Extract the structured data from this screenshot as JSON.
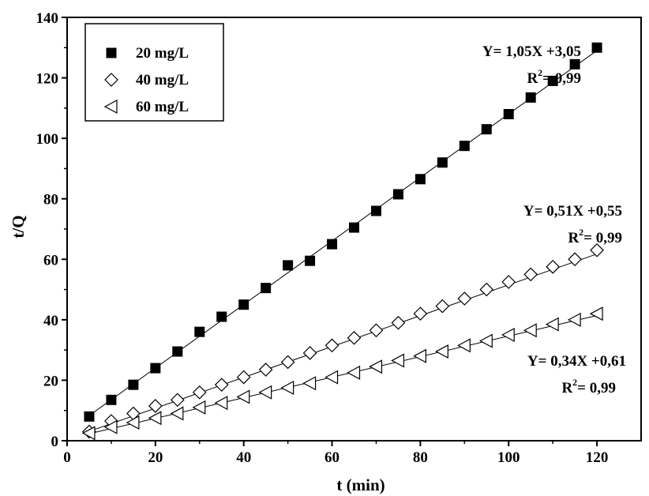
{
  "chart_data": {
    "type": "scatter",
    "xlabel": "t (min)",
    "ylabel": "t/Q",
    "xlim": [
      0,
      130
    ],
    "ylim": [
      0,
      140
    ],
    "xticks": [
      0,
      20,
      40,
      60,
      80,
      100,
      120
    ],
    "yticks": [
      0,
      20,
      40,
      60,
      80,
      100,
      120,
      140
    ],
    "x": [
      5,
      10,
      15,
      20,
      25,
      30,
      35,
      40,
      45,
      50,
      55,
      60,
      65,
      70,
      75,
      80,
      85,
      90,
      95,
      100,
      105,
      110,
      115,
      120
    ],
    "grid": false,
    "legend_position": "top-left",
    "series": [
      {
        "name": "20 mg/L",
        "marker": "filled-square",
        "values": [
          8,
          13.5,
          18.5,
          24,
          29.5,
          36,
          41,
          45,
          50.5,
          58,
          59.5,
          65,
          70.5,
          76,
          81.5,
          86.5,
          92,
          97.5,
          103,
          108,
          113.5,
          119,
          124.5,
          130
        ],
        "fit": {
          "slope": 1.05,
          "intercept": 3.05
        },
        "equation": "Y= 1,05X +3,05",
        "r2_label": "R",
        "r2_value": "= 0,99"
      },
      {
        "name": "40 mg/L",
        "marker": "open-diamond",
        "values": [
          3,
          6.5,
          9,
          11.5,
          13.5,
          16,
          18.5,
          21,
          23.5,
          26,
          29,
          31.5,
          34,
          36.5,
          39,
          42,
          44.5,
          47,
          50,
          52.5,
          55,
          57.5,
          60,
          63
        ],
        "fit": {
          "slope": 0.51,
          "intercept": 0.55
        },
        "equation": "Y= 0,51X +0,55",
        "r2_label": "R",
        "r2_value": "= 0,99"
      },
      {
        "name": "60 mg/L",
        "marker": "open-triangle-left",
        "values": [
          2.5,
          4.5,
          6,
          7.5,
          9,
          11,
          12.5,
          14.5,
          16,
          17.5,
          19,
          21,
          22.5,
          24.5,
          26.5,
          28,
          29.5,
          31.5,
          33,
          35,
          36.5,
          38.5,
          40,
          42
        ],
        "fit": {
          "slope": 0.34,
          "intercept": 0.61
        },
        "equation": "Y= 0,34X +0,61",
        "r2_label": "R",
        "r2_value": "= 0,99"
      }
    ],
    "superscript": "2"
  }
}
